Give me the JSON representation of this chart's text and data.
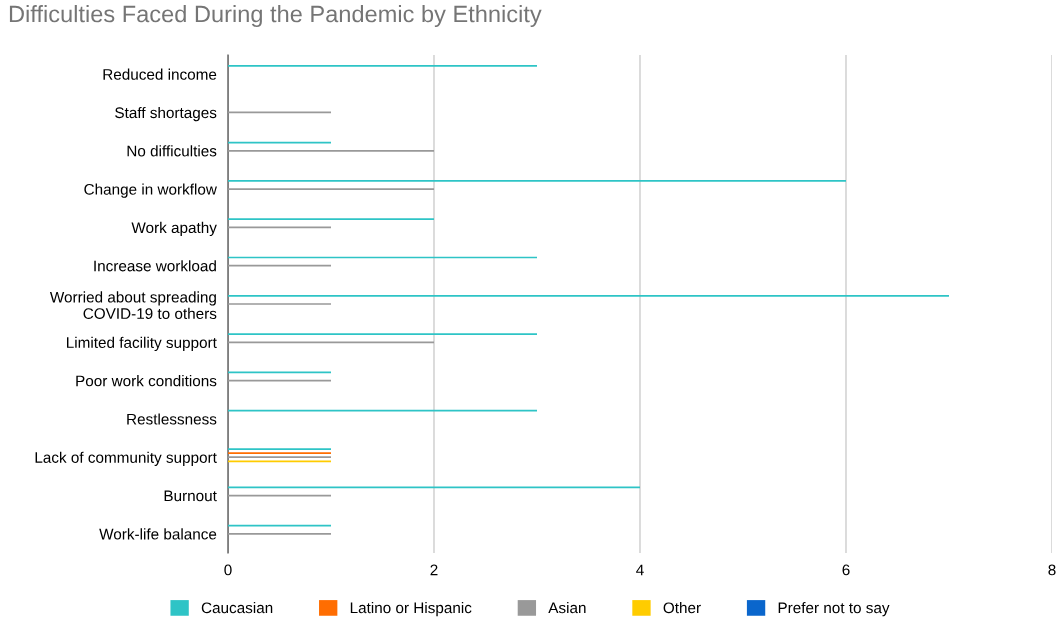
{
  "chart_data": {
    "type": "bar",
    "orientation": "horizontal",
    "title": "Difficulties Faced During the Pandemic by Ethnicity",
    "categories": [
      "Reduced income",
      "Staff shortages",
      "No difficulties",
      "Change in workflow",
      "Work apathy",
      "Increase workload",
      "Worried about spreading\nCOVID-19 to others",
      "Limited facility support",
      "Poor work conditions",
      "Restlessness",
      "Lack of community support",
      "Burnout",
      "Work-life balance"
    ],
    "series": [
      {
        "name": "Caucasian",
        "color": "#2ec4c6",
        "values": [
          3,
          0,
          1,
          6,
          2,
          3,
          7,
          3,
          1,
          3,
          1,
          4,
          1
        ]
      },
      {
        "name": "Latino or Hispanic",
        "color": "#ff6d01",
        "values": [
          0,
          0,
          0,
          0,
          0,
          0,
          0,
          0,
          0,
          0,
          1,
          0,
          0
        ]
      },
      {
        "name": "Asian",
        "color": "#999999",
        "values": [
          0,
          1,
          2,
          2,
          1,
          1,
          1,
          2,
          1,
          0,
          1,
          1,
          1
        ]
      },
      {
        "name": "Other",
        "color": "#ffcc00",
        "values": [
          0,
          0,
          0,
          0,
          0,
          0,
          0,
          0,
          0,
          0,
          1,
          0,
          0
        ]
      },
      {
        "name": "Prefer not to say",
        "color": "#0a66cc",
        "values": [
          0,
          0,
          0,
          0,
          0,
          0,
          0,
          0,
          0,
          0,
          0,
          0,
          0
        ]
      }
    ],
    "xlim": [
      0,
      8
    ],
    "xticks": [
      0,
      2,
      4,
      6,
      8
    ],
    "grid": "x",
    "legend": "bottom"
  }
}
